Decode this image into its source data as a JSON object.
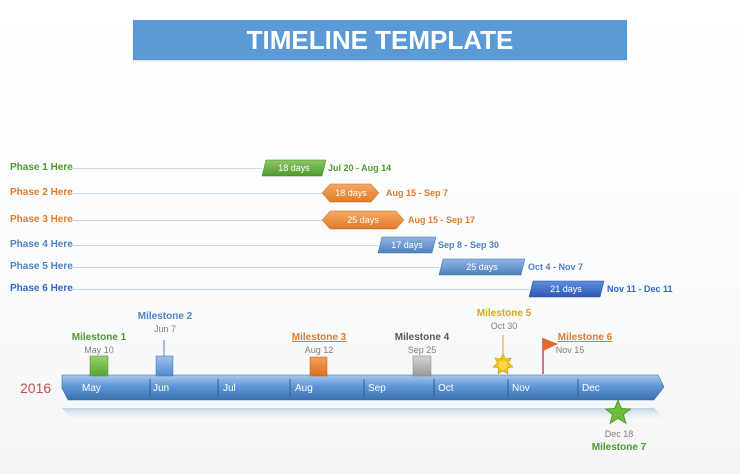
{
  "title": "TIMELINE TEMPLATE",
  "colors": {
    "banner": "#5a9ad6",
    "green": "#4e9a2c",
    "orange": "#e07b28",
    "blue": "#4f81bd",
    "dark_blue": "#2e67c9",
    "gold": "#d8a51a",
    "gray": "#595959"
  },
  "phases": [
    {
      "label": "Phase 1 Here",
      "duration": "18 days",
      "range": "Jul 20 - Aug 14",
      "color": "#4e9a2c",
      "shape": "parallelogram"
    },
    {
      "label": "Phase 2 Here",
      "duration": "18 days",
      "range": "Aug 15 - Sep 7",
      "color": "#e07b28",
      "shape": "double-arrow"
    },
    {
      "label": "Phase 3 Here",
      "duration": "25 days",
      "range": "Aug 15 - Sep 17",
      "color": "#e07b28",
      "shape": "double-arrow"
    },
    {
      "label": "Phase 4 Here",
      "duration": "17 days",
      "range": "Sep 8 - Sep 30",
      "color": "#4f81bd",
      "shape": "parallelogram"
    },
    {
      "label": "Phase 5 Here",
      "duration": "25 days",
      "range": "Oct 4 - Nov 7",
      "color": "#4f81bd",
      "shape": "parallelogram"
    },
    {
      "label": "Phase 6 Here",
      "duration": "21 days",
      "range": "Nov 11 - Dec 11",
      "color": "#2e67c9",
      "shape": "parallelogram"
    }
  ],
  "timeline": {
    "year": "2016",
    "months": [
      "May",
      "Jun",
      "Jul",
      "Aug",
      "Sep",
      "Oct",
      "Nov",
      "Dec"
    ]
  },
  "milestones": [
    {
      "name": "Milestone 1",
      "date": "May 10",
      "color": "#4e9a2c",
      "marker": "square",
      "underline": false
    },
    {
      "name": "Milestone 2",
      "date": "Jun 7",
      "color": "#4f81bd",
      "marker": "square",
      "underline": false
    },
    {
      "name": "Milestone 3",
      "date": "Aug 12",
      "color": "#e07b28",
      "marker": "square",
      "underline": true
    },
    {
      "name": "Milestone 4",
      "date": "Sep 25",
      "color": "#595959",
      "marker": "square",
      "underline": false
    },
    {
      "name": "Milestone 5",
      "date": "Oct 30",
      "color": "#d8a51a",
      "marker": "sun-icon",
      "underline": false
    },
    {
      "name": "Milestone 6",
      "date": "Nov 15",
      "color": "#e07b28",
      "marker": "flag-icon",
      "underline": true
    },
    {
      "name": "Milestone 7",
      "date": "Dec 18",
      "color": "#4e9a2c",
      "marker": "star-icon",
      "underline": false
    }
  ]
}
